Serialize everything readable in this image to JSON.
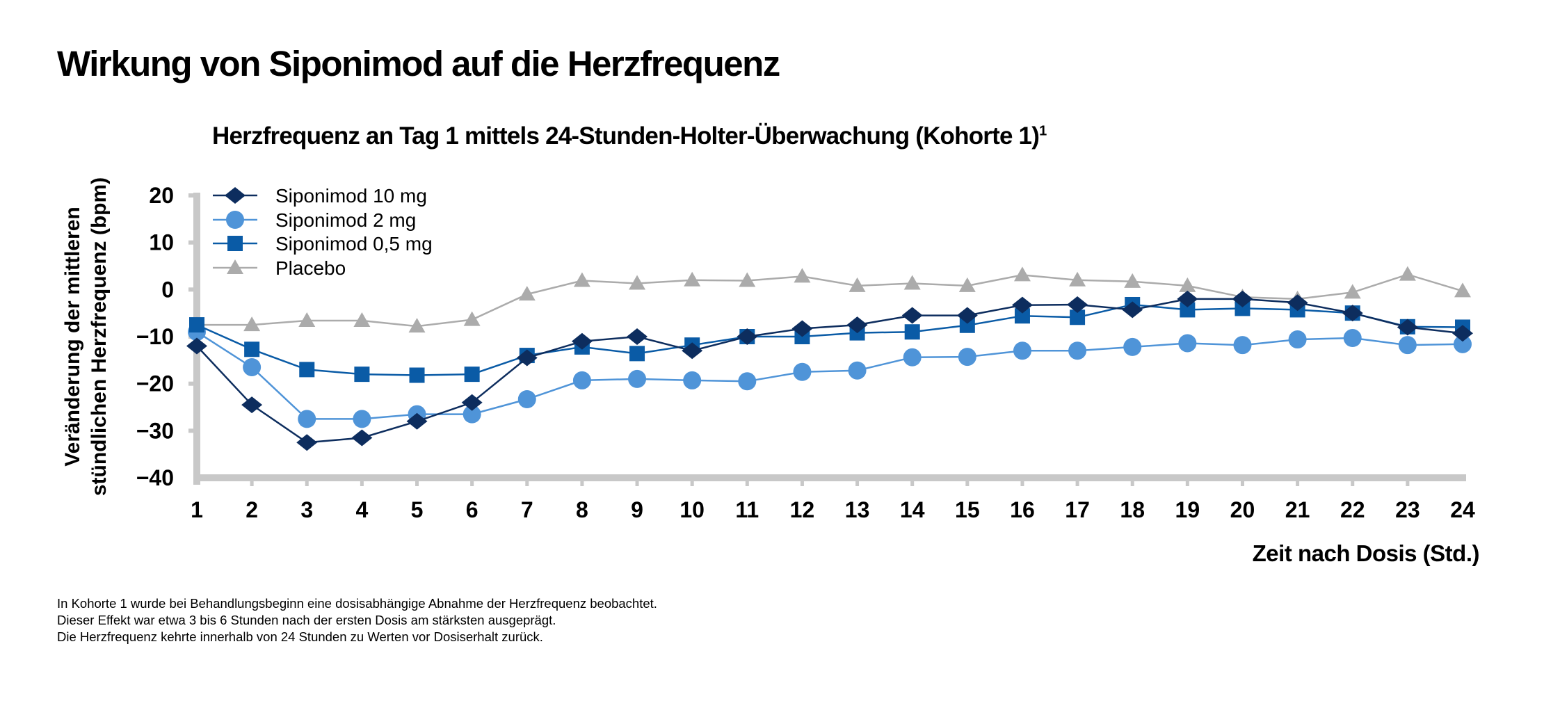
{
  "title": "Wirkung von Siponimod auf die Herzfrequenz",
  "chart_data": {
    "type": "line",
    "title": "Herzfrequenz an Tag 1 mittels 24-Stunden-Holter-Überwachung (Kohorte 1)",
    "title_superscript": "1",
    "ylabel_lines": [
      "Veränderung der mittleren",
      "stündlichen Herzfrequenz (bpm)"
    ],
    "xlabel": "Zeit nach Dosis (Std.)",
    "x": [
      1,
      2,
      3,
      4,
      5,
      6,
      7,
      8,
      9,
      10,
      11,
      12,
      13,
      14,
      15,
      16,
      17,
      18,
      19,
      20,
      21,
      22,
      23,
      24
    ],
    "xlim": [
      1,
      24
    ],
    "ylim": [
      -40,
      20
    ],
    "yticks": [
      20,
      10,
      0,
      -10,
      -20,
      -30,
      -40
    ],
    "ytick_labels": [
      "20",
      "10",
      "0",
      "−10",
      "−20",
      "−30",
      "−40"
    ],
    "grid": false,
    "legend_position": "top-left",
    "series": [
      {
        "name": "Siponimod 10 mg",
        "marker": "diamond",
        "color": "#0d2d5e",
        "values": [
          -12,
          -24.5,
          -32.5,
          -31.5,
          -28,
          -24,
          -14.5,
          -11,
          -10,
          -13,
          -10,
          -8.3,
          -7.5,
          -5.5,
          -5.5,
          -3.3,
          -3.2,
          -4.3,
          -2,
          -2,
          -2.8,
          -5,
          -8,
          -9.3
        ]
      },
      {
        "name": "Siponimod 2 mg",
        "marker": "circle",
        "color": "#4f94d8",
        "values": [
          -9,
          -16.5,
          -27.5,
          -27.5,
          -26.5,
          -26.5,
          -23.3,
          -19.3,
          -19,
          -19.3,
          -19.5,
          -17.5,
          -17.2,
          -14.4,
          -14.3,
          -13,
          -13,
          -12.2,
          -11.4,
          -11.8,
          -10.6,
          -10.3,
          -11.8,
          -11.6
        ]
      },
      {
        "name": "Siponimod 0,5 mg",
        "marker": "square",
        "color": "#0a5ba6",
        "values": [
          -7.5,
          -12.7,
          -17,
          -18,
          -18.2,
          -18,
          -14,
          -12.2,
          -13.6,
          -11.8,
          -10,
          -10,
          -9.2,
          -9,
          -7.6,
          -5.6,
          -5.9,
          -3.2,
          -4.3,
          -4,
          -4.3,
          -5,
          -7.9,
          -8
        ]
      },
      {
        "name": "Placebo",
        "marker": "triangle",
        "color": "#ababab",
        "values": [
          -7.5,
          -7.5,
          -6.6,
          -6.6,
          -7.8,
          -6.4,
          -1,
          1.9,
          1.3,
          2,
          1.9,
          2.8,
          0.8,
          1.3,
          0.8,
          3.1,
          2,
          1.7,
          0.8,
          -1.6,
          -2,
          -0.6,
          3.2,
          -0.3
        ]
      }
    ]
  },
  "footnotes": [
    "In Kohorte 1 wurde bei Behandlungsbeginn eine dosisabhängige Abnahme der Herzfrequenz beobachtet.",
    "Dieser Effekt war etwa 3 bis 6 Stunden nach der ersten Dosis am stärksten ausgeprägt.",
    "Die Herzfrequenz kehrte innerhalb von 24 Stunden zu Werten vor Dosiserhalt zurück."
  ]
}
